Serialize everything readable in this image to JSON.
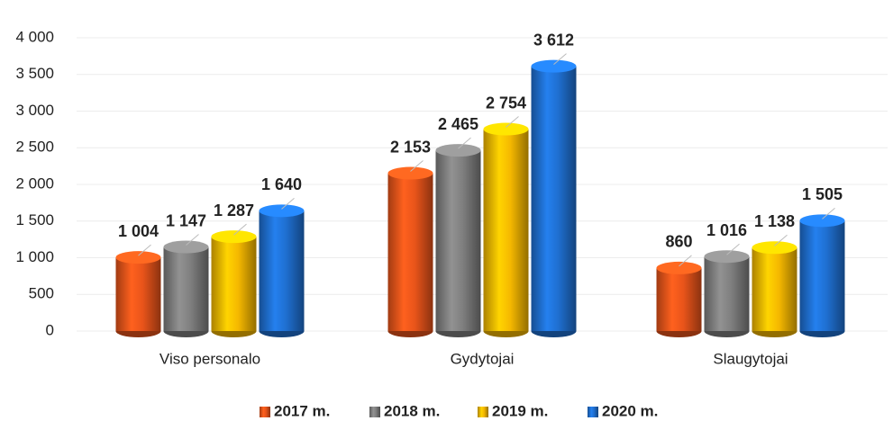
{
  "chart_data": {
    "type": "bar",
    "categories": [
      "Viso personalo",
      "Gydytojai",
      "Slaugytojai"
    ],
    "series": [
      {
        "name": "2017 m.",
        "color": "#e8541a",
        "values": [
          1004,
          2153,
          860
        ],
        "value_labels": [
          "1 004",
          "2 153",
          "860"
        ]
      },
      {
        "name": "2018 m.",
        "color": "#7f7f7f",
        "values": [
          1147,
          2465,
          1016
        ],
        "value_labels": [
          "1 147",
          "2 465",
          "1 016"
        ]
      },
      {
        "name": "2019 m.",
        "color": "#f5b800",
        "values": [
          1287,
          2754,
          1138
        ],
        "value_labels": [
          "1 287",
          "2 754",
          "1 138"
        ]
      },
      {
        "name": "2020 m.",
        "color": "#1f6fd0",
        "values": [
          1640,
          3612,
          1505
        ],
        "value_labels": [
          "1 640",
          "3 612",
          "1 505"
        ]
      }
    ],
    "ylim": [
      0,
      4000
    ],
    "yticks": [
      0,
      500,
      {
        "value": 1000,
        "label": "1 000"
      },
      {
        "value": 1500,
        "label": "1 500"
      },
      {
        "value": 2000,
        "label": "2 000"
      },
      {
        "value": 2500,
        "label": "2 500"
      },
      {
        "value": 3000,
        "label": "3 000"
      },
      {
        "value": 3500,
        "label": "3 500"
      },
      {
        "value": 4000,
        "label": "4 000"
      }
    ],
    "grid": true,
    "legend": "bottom"
  }
}
